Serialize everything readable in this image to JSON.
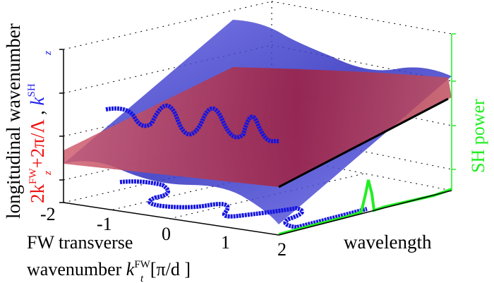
{
  "chart_data": {
    "type": "surface",
    "grid": true,
    "x_axis": {
      "label_line1": "FW transverse",
      "label_line2_text": "wavenumber ",
      "label_symbol": "k",
      "label_sup": "FW",
      "label_sub": "t",
      "label_unit": "[π/d ]",
      "range": [
        -2,
        2
      ],
      "ticks": [
        "-2",
        "-1",
        "0",
        "1",
        "2"
      ]
    },
    "y_axis": {
      "label": "wavelength"
    },
    "z_axis": {
      "label_main": "longitudinal wavenumber",
      "label_red": "2k",
      "label_red_sub": "z",
      "label_red_sup": "FW",
      "label_red_tail": "+2π/Λ",
      "label_sep": " ,  ",
      "label_blue": "k",
      "label_blue_sub": "z",
      "label_blue_sup": "SH"
    },
    "right_axis": {
      "label": "SH power"
    },
    "series": [
      {
        "name": "2k_z^FW+2π/Λ",
        "kind": "surface",
        "color": "#c03040"
      },
      {
        "name": "k_z^SH",
        "kind": "surface",
        "color": "#3a3ad0"
      },
      {
        "kind": "phase-matching curve",
        "color": "#1010e0"
      },
      {
        "kind": "line",
        "color": "#000000"
      },
      {
        "name": "SH power",
        "kind": "line",
        "color": "#22ee22"
      }
    ]
  }
}
